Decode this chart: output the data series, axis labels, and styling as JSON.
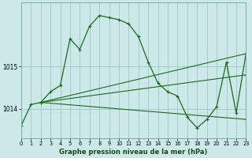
{
  "title": "Graphe pression niveau de la mer (hPa)",
  "bg_color": "#cce8e8",
  "grid_color": "#9dc8c8",
  "line_color": "#1a6b1a",
  "xlim": [
    0,
    23
  ],
  "ylim": [
    1013.3,
    1016.5
  ],
  "yticks": [
    1014,
    1015
  ],
  "xticks": [
    0,
    1,
    2,
    3,
    4,
    5,
    6,
    7,
    8,
    9,
    10,
    11,
    12,
    13,
    14,
    15,
    16,
    17,
    18,
    19,
    20,
    21,
    22,
    23
  ],
  "main_series_x": [
    0,
    1,
    2,
    3,
    4,
    5,
    6,
    7,
    8,
    9,
    10,
    11,
    12,
    13,
    14,
    15,
    16,
    17,
    18,
    19,
    20,
    21,
    22,
    23
  ],
  "main_series_y": [
    1013.6,
    1014.1,
    1014.15,
    1014.4,
    1014.55,
    1015.65,
    1015.4,
    1015.95,
    1016.2,
    1016.15,
    1016.1,
    1016.0,
    1015.7,
    1015.1,
    1014.6,
    1014.4,
    1014.3,
    1013.8,
    1013.55,
    1013.75,
    1014.05,
    1015.1,
    1013.9,
    1015.3
  ],
  "fan_lines": [
    {
      "x": [
        2,
        23
      ],
      "y": [
        1014.15,
        1015.3
      ]
    },
    {
      "x": [
        2,
        23
      ],
      "y": [
        1014.15,
        1014.8
      ]
    },
    {
      "x": [
        2,
        23
      ],
      "y": [
        1014.15,
        1013.75
      ]
    }
  ]
}
